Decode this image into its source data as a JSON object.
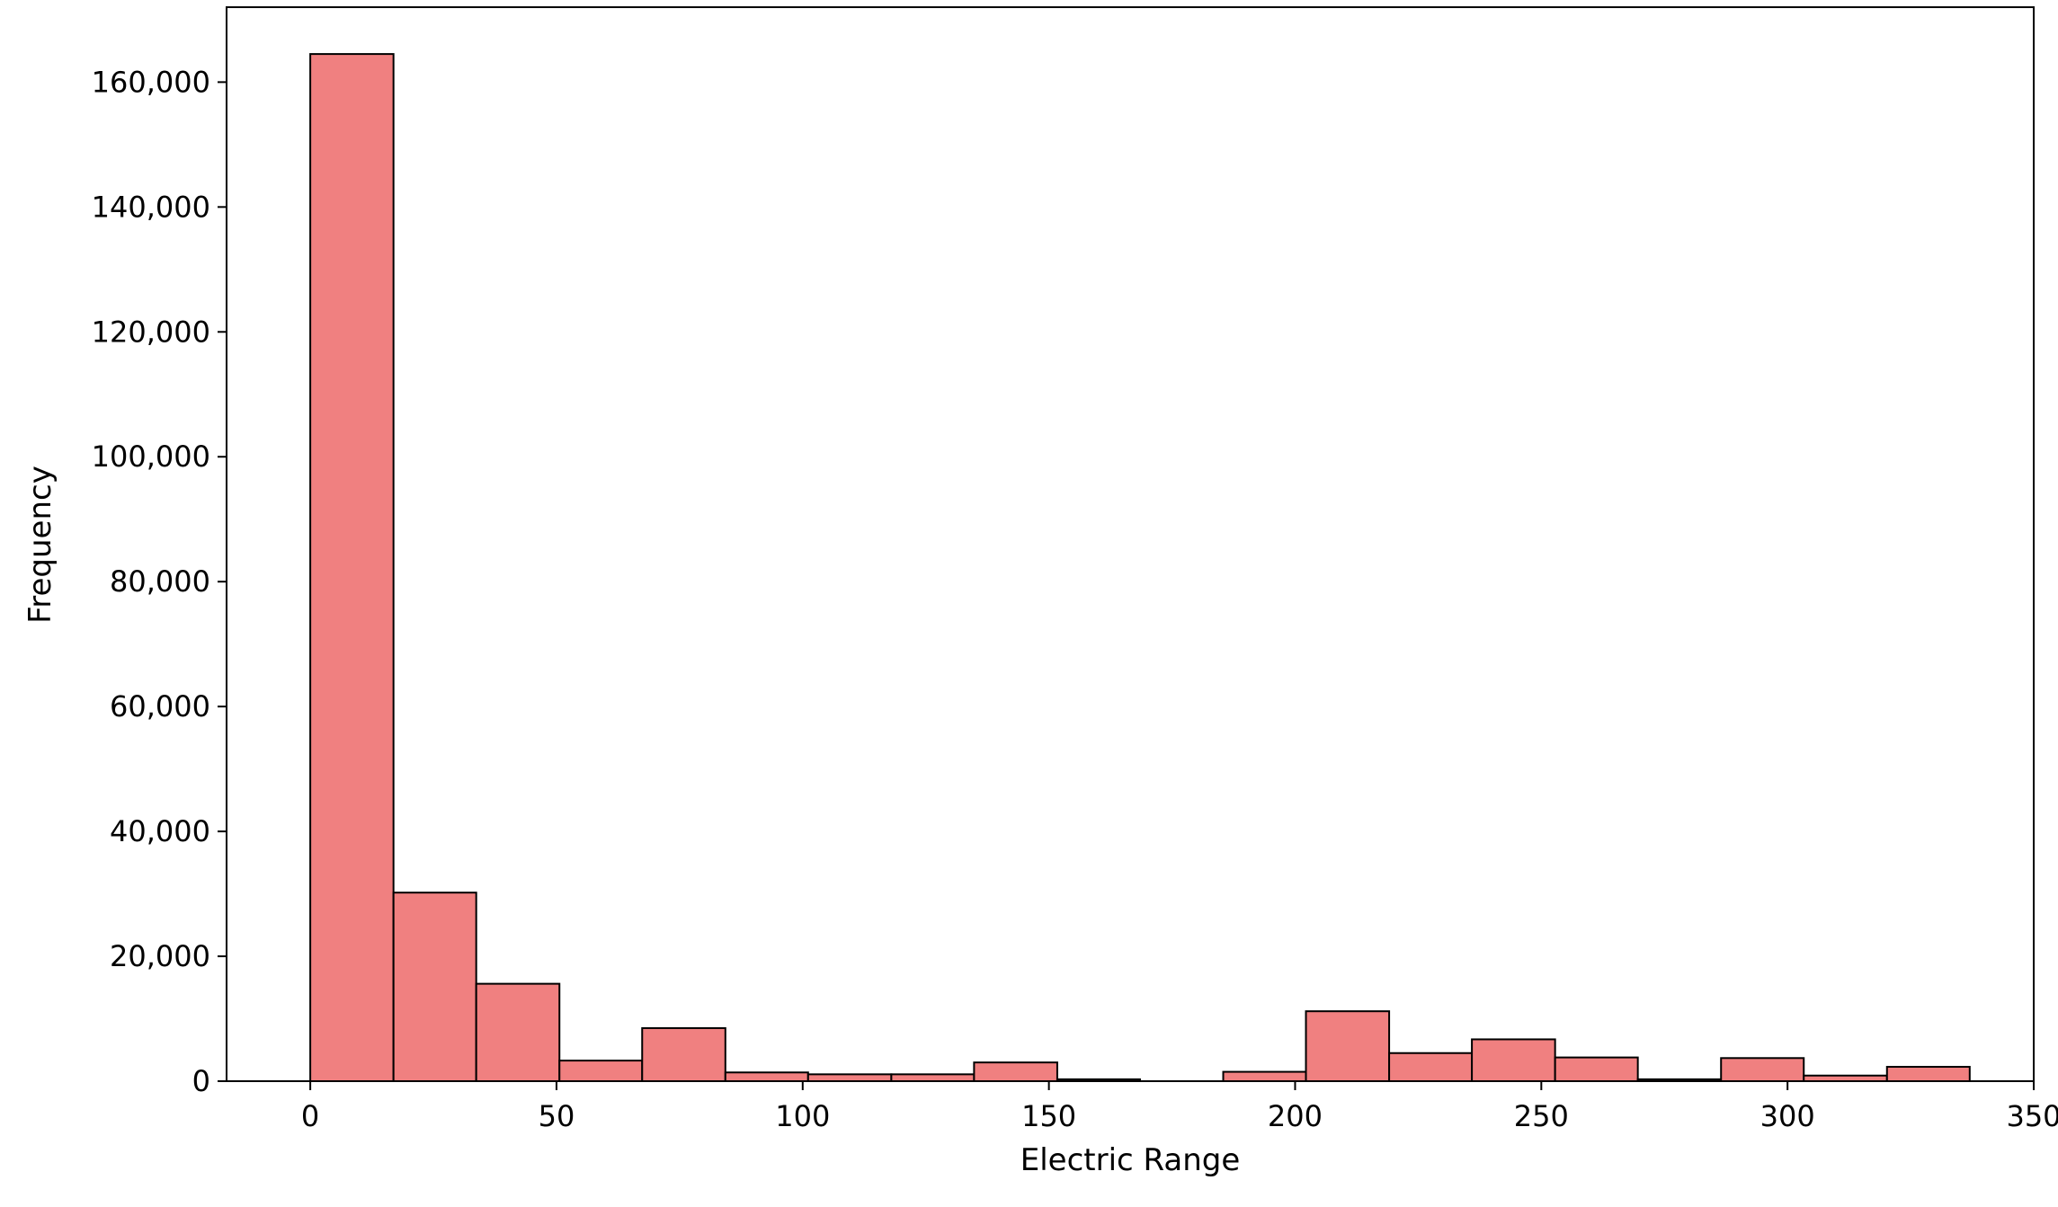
{
  "chart_data": {
    "type": "bar",
    "title": "",
    "xlabel": "Electric Range",
    "ylabel": "Frequency",
    "xlim": [
      -17,
      350
    ],
    "ylim": [
      0,
      172000
    ],
    "grid": false,
    "bar_color": "#f08080",
    "edge_color": "#000000",
    "bins": [
      {
        "x0": 0.0,
        "x1": 16.9,
        "value": 164500
      },
      {
        "x0": 16.9,
        "x1": 33.7,
        "value": 30200
      },
      {
        "x0": 33.7,
        "x1": 50.6,
        "value": 15600
      },
      {
        "x0": 50.6,
        "x1": 67.4,
        "value": 3300
      },
      {
        "x0": 67.4,
        "x1": 84.3,
        "value": 8500
      },
      {
        "x0": 84.3,
        "x1": 101.1,
        "value": 1400
      },
      {
        "x0": 101.1,
        "x1": 118.0,
        "value": 1100
      },
      {
        "x0": 118.0,
        "x1": 134.8,
        "value": 1100
      },
      {
        "x0": 134.8,
        "x1": 151.7,
        "value": 3000
      },
      {
        "x0": 151.7,
        "x1": 168.5,
        "value": 300
      },
      {
        "x0": 168.5,
        "x1": 185.4,
        "value": 0
      },
      {
        "x0": 185.4,
        "x1": 202.2,
        "value": 1500
      },
      {
        "x0": 202.2,
        "x1": 219.1,
        "value": 11200
      },
      {
        "x0": 219.1,
        "x1": 235.9,
        "value": 4500
      },
      {
        "x0": 235.9,
        "x1": 252.8,
        "value": 6700
      },
      {
        "x0": 252.8,
        "x1": 269.6,
        "value": 3800
      },
      {
        "x0": 269.6,
        "x1": 286.5,
        "value": 300
      },
      {
        "x0": 286.5,
        "x1": 303.3,
        "value": 3700
      },
      {
        "x0": 303.3,
        "x1": 320.2,
        "value": 900
      },
      {
        "x0": 320.2,
        "x1": 337.0,
        "value": 2300
      }
    ],
    "x_ticks": [
      0,
      50,
      100,
      150,
      200,
      250,
      300,
      350
    ],
    "x_tick_labels": [
      "0",
      "50",
      "100",
      "150",
      "200",
      "250",
      "300",
      "350"
    ],
    "y_ticks": [
      0,
      20000,
      40000,
      60000,
      80000,
      100000,
      120000,
      140000,
      160000
    ],
    "y_tick_labels": [
      "0",
      "20,000",
      "40,000",
      "60,000",
      "80,000",
      "100,000",
      "120,000",
      "140,000",
      "160,000"
    ]
  }
}
